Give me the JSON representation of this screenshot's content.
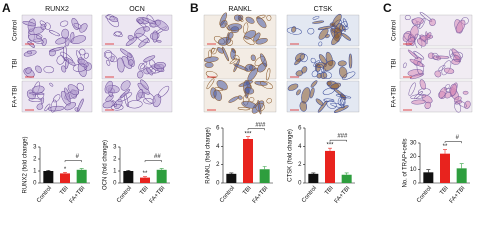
{
  "panels": [
    {
      "letter": "A",
      "columns": [
        "RUNX2",
        "OCN"
      ],
      "rows": [
        "Control",
        "TBI",
        "FA+TBI"
      ]
    },
    {
      "letter": "B",
      "columns": [
        "RANKL",
        "CTSK"
      ]
    },
    {
      "letter": "C",
      "rows": [
        "Control",
        "TBI",
        "FA+TBI"
      ]
    }
  ],
  "chart_data": [
    {
      "type": "bar",
      "y_label": "RUNX2 (fold change)",
      "categories": [
        "Control",
        "TBI",
        "FA+TBI"
      ],
      "values": [
        1.0,
        0.8,
        1.1
      ],
      "errors": [
        0.05,
        0.08,
        0.1
      ],
      "colors": [
        "#111111",
        "#e8231e",
        "#2e9e3e"
      ],
      "ylim": [
        0,
        3
      ],
      "yticks": [
        0,
        1,
        2,
        3
      ],
      "annotations": [
        "*",
        "#"
      ]
    },
    {
      "type": "bar",
      "y_label": "OCN (fold change)",
      "categories": [
        "Control",
        "TBI",
        "FA+TBI"
      ],
      "values": [
        1.0,
        0.45,
        1.1
      ],
      "errors": [
        0.05,
        0.08,
        0.1
      ],
      "colors": [
        "#111111",
        "#e8231e",
        "#2e9e3e"
      ],
      "ylim": [
        0,
        3
      ],
      "yticks": [
        0,
        1,
        2,
        3
      ],
      "annotations": [
        "**",
        "##"
      ]
    },
    {
      "type": "bar",
      "y_label": "RANKL (fold change)",
      "categories": [
        "Control",
        "TBI",
        "FA+TBI"
      ],
      "values": [
        1.0,
        4.8,
        1.5
      ],
      "errors": [
        0.1,
        0.25,
        0.3
      ],
      "colors": [
        "#111111",
        "#e8231e",
        "#2e9e3e"
      ],
      "ylim": [
        0,
        6
      ],
      "yticks": [
        0,
        2,
        4,
        6
      ],
      "annotations": [
        "***",
        "###"
      ]
    },
    {
      "type": "bar",
      "y_label": "CTSK (fold change)",
      "categories": [
        "Control",
        "TBI",
        "FA+TBI"
      ],
      "values": [
        1.0,
        3.5,
        0.9
      ],
      "errors": [
        0.1,
        0.3,
        0.2
      ],
      "colors": [
        "#111111",
        "#e8231e",
        "#2e9e3e"
      ],
      "ylim": [
        0,
        6
      ],
      "yticks": [
        0,
        2,
        4,
        6
      ],
      "annotations": [
        "***",
        "###"
      ]
    },
    {
      "type": "bar",
      "y_label": "No. of TRAP+cells",
      "categories": [
        "Control",
        "TBI",
        "FA+TBI"
      ],
      "values": [
        8,
        22,
        11
      ],
      "errors": [
        2,
        3,
        3.5
      ],
      "colors": [
        "#111111",
        "#e8231e",
        "#2e9e3e"
      ],
      "ylim": [
        0,
        30
      ],
      "yticks": [
        0,
        10,
        20,
        30
      ],
      "annotations": [
        "**",
        "#"
      ]
    }
  ]
}
